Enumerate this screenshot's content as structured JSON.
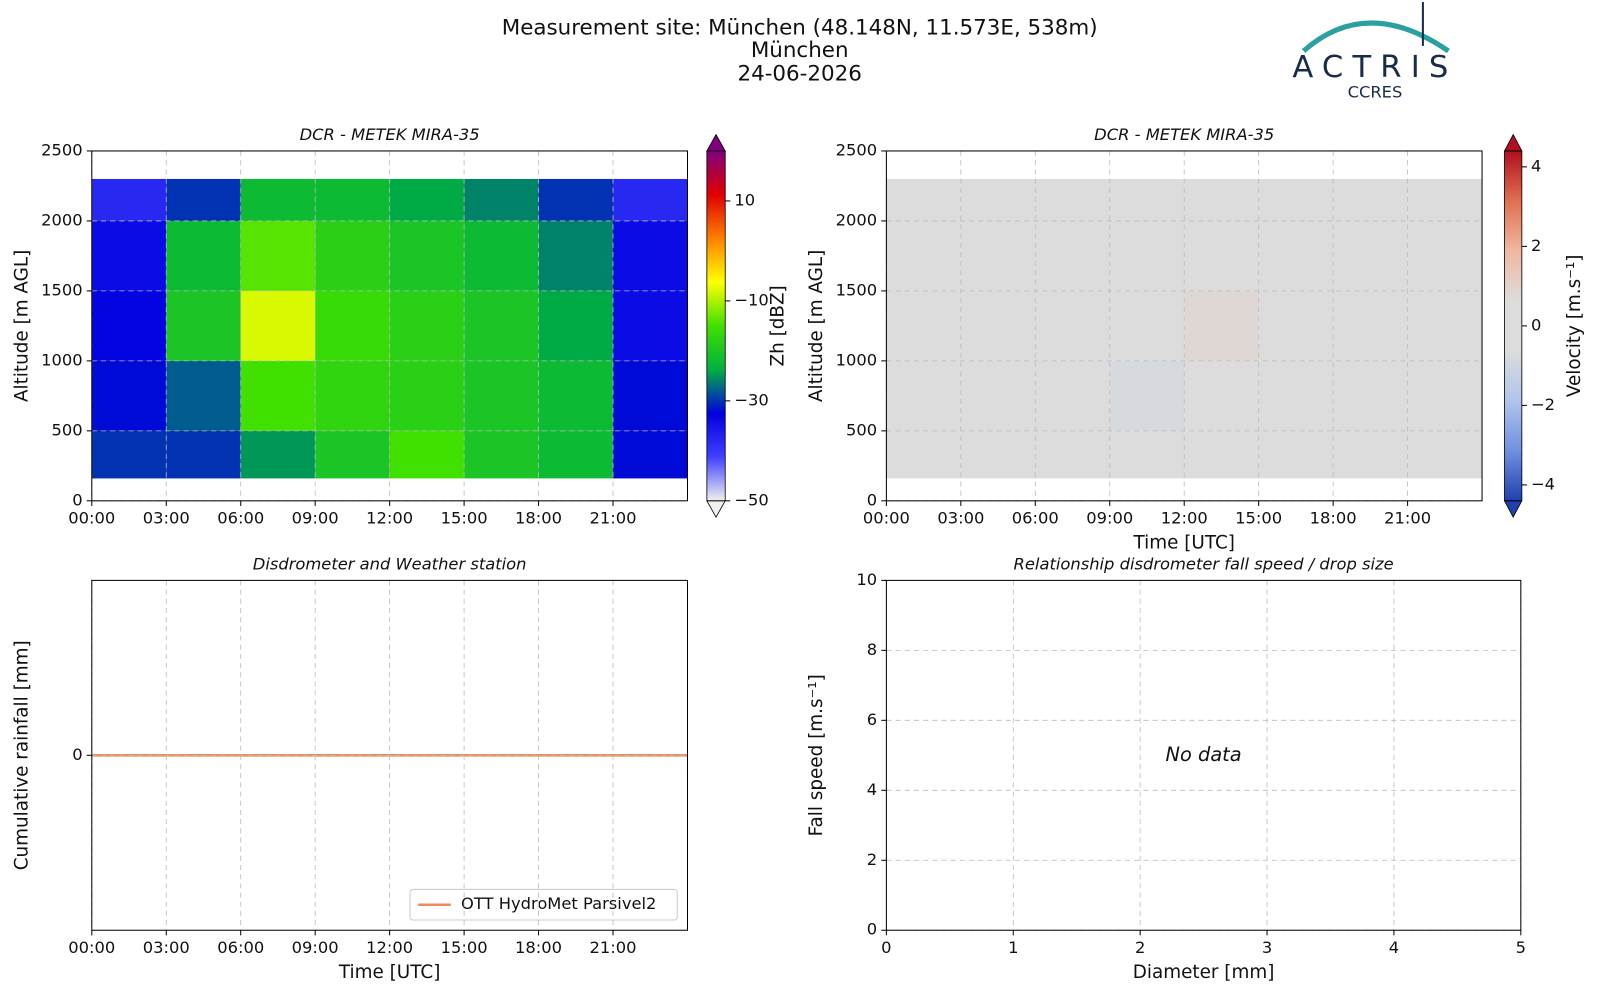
{
  "header": {
    "title": "Measurement site: München (48.148N, 11.573E, 538m)",
    "site": "München",
    "date": "24-06-2026",
    "logo": "ACTRIS",
    "logo_subtitle": "CCRES"
  },
  "chart_data": [
    {
      "type": "heatmap",
      "title": "DCR - METEK MIRA-35",
      "ylabel": "Altitude [m AGL]",
      "colorbar_label": "Zh [dBZ]",
      "xlim": [
        0,
        24
      ],
      "xticks": [
        {
          "value": 0,
          "label": "00:00"
        },
        {
          "value": 3,
          "label": "03:00"
        },
        {
          "value": 6,
          "label": "06:00"
        },
        {
          "value": 9,
          "label": "09:00"
        },
        {
          "value": 12,
          "label": "12:00"
        },
        {
          "value": 15,
          "label": "15:00"
        },
        {
          "value": 18,
          "label": "18:00"
        },
        {
          "value": 21,
          "label": "21:00"
        }
      ],
      "ylim": [
        0,
        2500
      ],
      "yticks": [
        0,
        500,
        1000,
        1500,
        2000,
        2500
      ],
      "grid": true,
      "xbins": [
        0,
        3,
        6,
        9,
        12,
        15,
        18,
        21,
        24
      ],
      "ybins": [
        160,
        500,
        1000,
        1500,
        2000,
        2300
      ],
      "z": [
        [
          -30,
          -30,
          -25,
          -20,
          -15,
          -20,
          -22,
          -32
        ],
        [
          -32,
          -28,
          -15,
          -17,
          -18,
          -20,
          -22,
          -32
        ],
        [
          -33,
          -20,
          -8,
          -16,
          -18,
          -20,
          -24,
          -34
        ],
        [
          -34,
          -22,
          -14,
          -18,
          -20,
          -22,
          -26,
          -34
        ],
        [
          -38,
          -30,
          -22,
          -22,
          -24,
          -26,
          -30,
          -38
        ]
      ],
      "zlim": [
        -50,
        20
      ],
      "zticks": [
        {
          "value": -50,
          "label": "−50"
        },
        {
          "value": -30,
          "label": "−30"
        },
        {
          "value": -10,
          "label": "−10"
        },
        10
      ],
      "colormap": [
        "#f0f0f0",
        "#4040ff",
        "#0000e0",
        "#00b040",
        "#40e000",
        "#ffff00",
        "#ff8000",
        "#e00000",
        "#800080"
      ]
    },
    {
      "type": "heatmap",
      "title": "DCR - METEK MIRA-35",
      "xlabel": "Time [UTC]",
      "ylabel": "Altitude [m AGL]",
      "colorbar_label": "Velocity [m.s⁻¹]",
      "xlim": [
        0,
        24
      ],
      "xticks": [
        {
          "value": 0,
          "label": "00:00"
        },
        {
          "value": 3,
          "label": "03:00"
        },
        {
          "value": 6,
          "label": "06:00"
        },
        {
          "value": 9,
          "label": "09:00"
        },
        {
          "value": 12,
          "label": "12:00"
        },
        {
          "value": 15,
          "label": "15:00"
        },
        {
          "value": 18,
          "label": "18:00"
        },
        {
          "value": 21,
          "label": "21:00"
        }
      ],
      "ylim": [
        0,
        2500
      ],
      "yticks": [
        0,
        500,
        1000,
        1500,
        2000,
        2500
      ],
      "grid": true,
      "xbins": [
        0,
        3,
        6,
        9,
        12,
        15,
        18,
        21,
        24
      ],
      "ybins": [
        160,
        500,
        1000,
        1500,
        2000,
        2300
      ],
      "z": [
        [
          0,
          0,
          0.2,
          -0.5,
          0.3,
          -0.2,
          0.1,
          0
        ],
        [
          0,
          0.2,
          0.2,
          -0.8,
          0.5,
          -0.4,
          0.2,
          0
        ],
        [
          0,
          0.3,
          0.2,
          -0.6,
          0.8,
          -0.3,
          0.3,
          0
        ],
        [
          0,
          0,
          0.1,
          -0.4,
          0.6,
          -0.2,
          0.3,
          0.2
        ],
        [
          0,
          0,
          0,
          -0.3,
          0.4,
          -0.2,
          0.2,
          0.2
        ]
      ],
      "zlim": [
        -4.4,
        4.4
      ],
      "zticks": [
        {
          "value": -4,
          "label": "−4"
        },
        {
          "value": -2,
          "label": "−2"
        },
        0,
        2,
        4
      ],
      "colormap": [
        "#2040b0",
        "#7090e0",
        "#b0c4ec",
        "#dcdcdc",
        "#dcdcdc",
        "#f0b8a0",
        "#e07050",
        "#b01020"
      ]
    },
    {
      "type": "line",
      "title": "Disdrometer and Weather station",
      "xlabel": "Time [UTC]",
      "ylabel": "Cumulative rainfall [mm]",
      "xlim": [
        0,
        24
      ],
      "xticks": [
        {
          "value": 0,
          "label": "00:00"
        },
        {
          "value": 3,
          "label": "03:00"
        },
        {
          "value": 6,
          "label": "06:00"
        },
        {
          "value": 9,
          "label": "09:00"
        },
        {
          "value": 12,
          "label": "12:00"
        },
        {
          "value": 15,
          "label": "15:00"
        },
        {
          "value": 18,
          "label": "18:00"
        },
        {
          "value": 21,
          "label": "21:00"
        }
      ],
      "ylim": [
        -1,
        1
      ],
      "yticks": [
        0
      ],
      "grid": true,
      "legend": "lower right",
      "x": [
        0,
        24
      ],
      "series": [
        {
          "name": "OTT HydroMet Parsivel2",
          "color": "#ef8a62",
          "values": [
            0,
            0
          ]
        }
      ]
    },
    {
      "type": "scatter",
      "title": "Relationship disdrometer fall speed / drop size",
      "xlabel": "Diameter [mm]",
      "ylabel": "Fall speed [m.s⁻¹]",
      "xlim": [
        0,
        5
      ],
      "xticks": [
        0,
        1,
        2,
        3,
        4,
        5
      ],
      "ylim": [
        0,
        10
      ],
      "yticks": [
        0,
        2,
        4,
        6,
        8,
        10
      ],
      "grid": true,
      "annotation": "No data",
      "series": []
    }
  ]
}
